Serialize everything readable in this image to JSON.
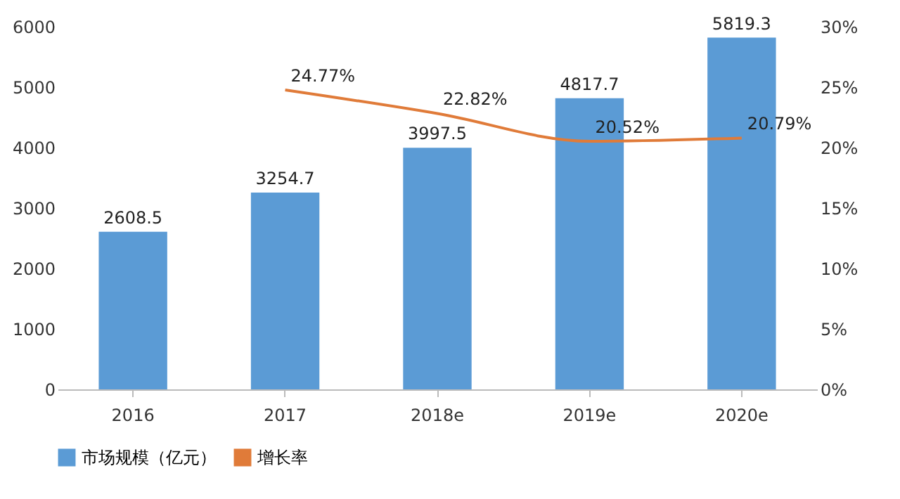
{
  "chart_data": {
    "type": "bar",
    "categories": [
      "2016",
      "2017",
      "2018e",
      "2019e",
      "2020e"
    ],
    "series": [
      {
        "name": "市场规模（亿元）",
        "color": "#5b9bd5",
        "values": [
          2608.5,
          3254.7,
          3997.5,
          4817.7,
          5819.3
        ],
        "value_labels": [
          "2608.5",
          "3254.7",
          "3997.5",
          "4817.7",
          "5819.3"
        ]
      },
      {
        "name": "增长率",
        "type": "line",
        "axis": "y2",
        "color": "#e07b39",
        "values": [
          null,
          24.77,
          22.82,
          20.52,
          20.79
        ],
        "value_labels": [
          null,
          "24.77%",
          "22.82%",
          "20.52%",
          "20.79%"
        ]
      }
    ],
    "ylim": [
      0,
      6000
    ],
    "yticks": [
      0,
      1000,
      2000,
      3000,
      4000,
      5000,
      6000
    ],
    "y2lim": [
      0,
      30
    ],
    "y2ticks": [
      {
        "value": 0,
        "label": "0%"
      },
      {
        "value": 5,
        "label": "5%"
      },
      {
        "value": 10,
        "label": "10%"
      },
      {
        "value": 15,
        "label": "15%"
      },
      {
        "value": 20,
        "label": "20%"
      },
      {
        "value": 25,
        "label": "25%"
      },
      {
        "value": 30,
        "label": "30%"
      }
    ],
    "legend": "bottom",
    "grid": false,
    "marker": "none",
    "line_style": "solid"
  }
}
